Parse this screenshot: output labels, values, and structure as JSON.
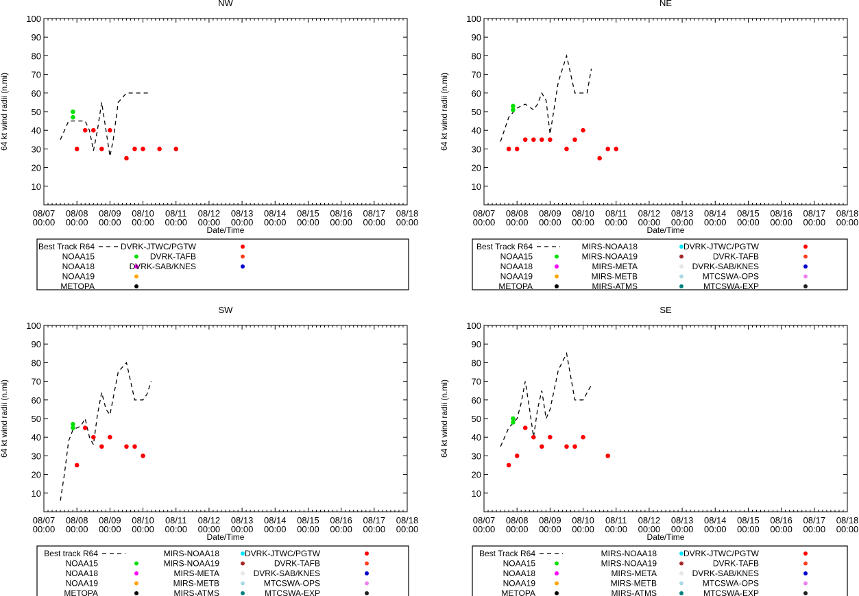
{
  "common": {
    "ylabel": "64 kt wind radii (n.mi)",
    "xlabel": "Date/Time",
    "ylim": [
      0,
      100
    ],
    "y_ticks": [
      10,
      20,
      30,
      40,
      50,
      60,
      70,
      80,
      90,
      100
    ],
    "x_tick_dates": [
      "08/07",
      "08/08",
      "08/09",
      "08/10",
      "08/11",
      "08/12",
      "08/13",
      "08/14",
      "08/15",
      "08/16",
      "08/17",
      "08/18"
    ],
    "x_tick_time": "00:00",
    "xlim_days": [
      0,
      11
    ]
  },
  "colors": {
    "NOAA15": "#00e000",
    "NOAA18": "#ff00ff",
    "NOAA19": "#ffa500",
    "METOPA": "#000000",
    "MIRS-NOAA18": "#00e5ff",
    "MIRS-NOAA19": "#a52a2a",
    "MIRS-META": "#e6e6e6",
    "MIRS-METB": "#add8e6",
    "MIRS-ATMS": "#008080",
    "DVRK-JTWC/PGTW": "#ff0000",
    "DVRK-TAFB": "#ff4020",
    "DVRK-SAB/KNES": "#0000cd",
    "MTCSWA-OPS": "#ee82ee",
    "MTCSWA-EXP": "#202020",
    "track": "#000000"
  },
  "chart_data": [
    {
      "type": "line",
      "title": "NW",
      "series": [
        {
          "name": "Best Track R64",
          "style": "dashed",
          "x": [
            0.5,
            0.75,
            1.0,
            1.25,
            1.38,
            1.5,
            1.62,
            1.75,
            1.88,
            2.0,
            2.1,
            2.25,
            2.5,
            2.75,
            3.0,
            3.25
          ],
          "y": [
            35,
            45,
            45,
            45,
            40,
            29,
            40,
            55,
            40,
            26,
            35,
            55,
            60,
            60,
            60,
            60
          ]
        },
        {
          "name": "NOAA15",
          "style": "points",
          "x": [
            0.88,
            0.88
          ],
          "y": [
            50,
            47
          ]
        },
        {
          "name": "DVRK-JTWC/PGTW",
          "style": "points",
          "x": [
            1.0,
            1.25,
            1.5,
            1.75,
            2.0,
            2.5,
            2.75,
            3.0,
            3.5,
            4.0
          ],
          "y": [
            30,
            40,
            40,
            30,
            40,
            25,
            30,
            30,
            30,
            30
          ]
        }
      ],
      "legend": [
        [
          "Best Track R64",
          "NOAA15",
          "NOAA18",
          "NOAA19",
          "METOPA"
        ],
        [
          "DVRK-JTWC/PGTW",
          "DVRK-TAFB",
          "DVRK-SAB/KNES"
        ]
      ]
    },
    {
      "type": "line",
      "title": "NE",
      "series": [
        {
          "name": "Best Track R64",
          "style": "dashed",
          "x": [
            0.5,
            0.75,
            1.0,
            1.25,
            1.5,
            1.62,
            1.75,
            1.88,
            2.0,
            2.25,
            2.5,
            2.75,
            3.0,
            3.12,
            3.25
          ],
          "y": [
            34,
            47,
            52,
            54,
            51,
            54,
            60,
            56,
            38,
            66,
            80,
            60,
            60,
            60,
            73
          ]
        },
        {
          "name": "NOAA15",
          "style": "points",
          "x": [
            0.88,
            0.88
          ],
          "y": [
            53,
            51
          ]
        },
        {
          "name": "DVRK-JTWC/PGTW",
          "style": "points",
          "x": [
            0.75,
            1.0,
            1.25,
            1.5,
            1.75,
            2.0,
            2.5,
            2.75,
            3.0,
            3.5,
            3.75,
            4.0
          ],
          "y": [
            30,
            30,
            35,
            35,
            35,
            35,
            30,
            35,
            40,
            25,
            30,
            30
          ]
        }
      ],
      "legend": [
        [
          "Best Track R64",
          "NOAA15",
          "NOAA18",
          "NOAA19",
          "METOPA"
        ],
        [
          "MIRS-NOAA18",
          "MIRS-NOAA19",
          "MIRS-META",
          "MIRS-METB",
          "MIRS-ATMS"
        ],
        [
          "DVRK-JTWC/PGTW",
          "DVRK-TAFB",
          "DVRK-SAB/KNES",
          "MTCSWA-OPS",
          "MTCSWA-EXP"
        ]
      ]
    },
    {
      "type": "line",
      "title": "SW",
      "series": [
        {
          "name": "Best Track R64",
          "style": "dashed",
          "x": [
            0.5,
            0.62,
            0.75,
            0.88,
            1.0,
            1.12,
            1.25,
            1.38,
            1.5,
            1.62,
            1.75,
            1.88,
            2.0,
            2.25,
            2.5,
            2.75,
            3.0,
            3.12,
            3.25
          ],
          "y": [
            6,
            20,
            38,
            44,
            45,
            46,
            50,
            40,
            36,
            52,
            64,
            55,
            52,
            75,
            80,
            60,
            60,
            63,
            70
          ]
        },
        {
          "name": "NOAA15",
          "style": "points",
          "x": [
            0.88,
            0.88
          ],
          "y": [
            47,
            45
          ]
        },
        {
          "name": "DVRK-JTWC/PGTW",
          "style": "points",
          "x": [
            1.0,
            1.25,
            1.5,
            1.75,
            2.0,
            2.5,
            2.75,
            3.0
          ],
          "y": [
            25,
            45,
            40,
            35,
            40,
            35,
            35,
            30
          ]
        }
      ],
      "legend": [
        [
          "Best track R64",
          "NOAA15",
          "NOAA18",
          "NOAA19",
          "METOPA"
        ],
        [
          "MIRS-NOAA18",
          "MIRS-NOAA19",
          "MIRS-META",
          "MIRS-METB",
          "MIRS-ATMS"
        ],
        [
          "DVRK-JTWC/PGTW",
          "DVRK-TAFB",
          "DVRK-SAB/KNES",
          "MTCSWA-OPS",
          "MTCSWA-EXP"
        ]
      ]
    },
    {
      "type": "line",
      "title": "SE",
      "series": [
        {
          "name": "Best Track R64",
          "style": "dashed",
          "x": [
            0.5,
            0.75,
            1.0,
            1.12,
            1.25,
            1.38,
            1.5,
            1.62,
            1.75,
            1.88,
            2.0,
            2.25,
            2.5,
            2.75,
            3.0,
            3.25
          ],
          "y": [
            35,
            45,
            50,
            58,
            70,
            55,
            40,
            55,
            65,
            50,
            55,
            76,
            85,
            60,
            60,
            68
          ]
        },
        {
          "name": "NOAA15",
          "style": "points",
          "x": [
            0.88,
            0.88
          ],
          "y": [
            50,
            48
          ]
        },
        {
          "name": "DVRK-JTWC/PGTW",
          "style": "points",
          "x": [
            0.75,
            1.0,
            1.25,
            1.5,
            1.75,
            2.0,
            2.5,
            2.75,
            3.0,
            3.75
          ],
          "y": [
            25,
            30,
            45,
            40,
            35,
            40,
            35,
            35,
            40,
            30
          ]
        }
      ],
      "legend": [
        [
          "Best Track R64",
          "NOAA15",
          "NOAA18",
          "NOAA19",
          "METOPA"
        ],
        [
          "MIRS-NOAA18",
          "MIRS-NOAA19",
          "MIRS-META",
          "MIRS-METB",
          "MIRS-ATMS"
        ],
        [
          "DVRK-JTWC/PGTW",
          "DVRK-TAFB",
          "DVRK-SAB/KNES",
          "MTCSWA-OPS",
          "MTCSWA-EXP"
        ]
      ]
    }
  ]
}
